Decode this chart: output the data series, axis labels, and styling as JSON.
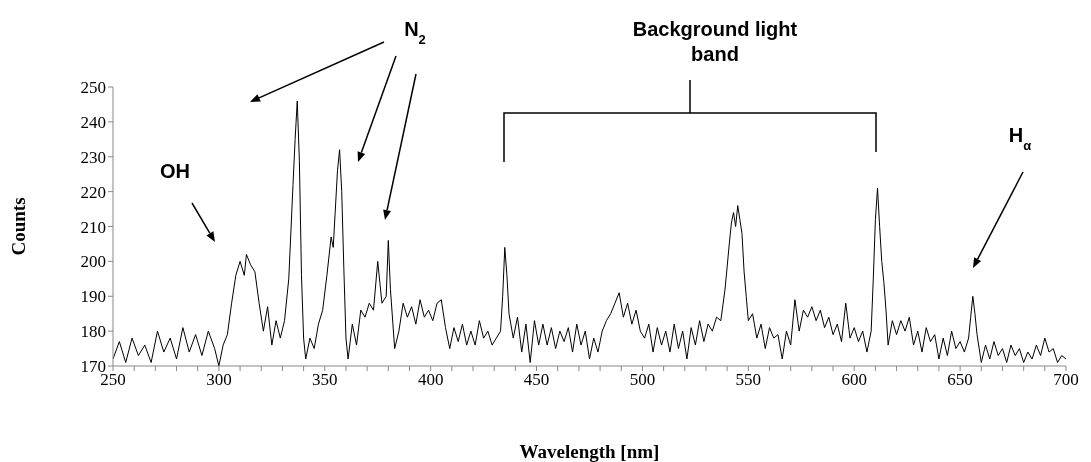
{
  "chart_data": {
    "type": "line",
    "xlabel": "Wavelength [nm]",
    "ylabel": "Counts",
    "xlim": [
      250,
      700
    ],
    "ylim": [
      170,
      250
    ],
    "xticks": [
      250,
      {
        "value": 260,
        "label": null
      },
      {
        "value": 270,
        "label": null
      },
      {
        "value": 280,
        "label": null
      },
      {
        "value": 290,
        "label": null
      },
      300,
      {
        "value": 310,
        "label": null
      },
      {
        "value": 320,
        "label": null
      },
      {
        "value": 330,
        "label": null
      },
      {
        "value": 340,
        "label": null
      },
      350,
      {
        "value": 360,
        "label": null
      },
      {
        "value": 370,
        "label": null
      },
      {
        "value": 380,
        "label": null
      },
      {
        "value": 390,
        "label": null
      },
      400,
      {
        "value": 410,
        "label": null
      },
      {
        "value": 420,
        "label": null
      },
      {
        "value": 430,
        "label": null
      },
      {
        "value": 440,
        "label": null
      },
      450,
      {
        "value": 460,
        "label": null
      },
      {
        "value": 470,
        "label": null
      },
      {
        "value": 480,
        "label": null
      },
      {
        "value": 490,
        "label": null
      },
      500,
      {
        "value": 510,
        "label": null
      },
      {
        "value": 520,
        "label": null
      },
      {
        "value": 530,
        "label": null
      },
      {
        "value": 540,
        "label": null
      },
      550,
      {
        "value": 560,
        "label": null
      },
      {
        "value": 570,
        "label": null
      },
      {
        "value": 580,
        "label": null
      },
      {
        "value": 590,
        "label": null
      },
      600,
      {
        "value": 610,
        "label": null
      },
      {
        "value": 620,
        "label": null
      },
      {
        "value": 630,
        "label": null
      },
      {
        "value": 640,
        "label": null
      },
      650,
      {
        "value": 660,
        "label": null
      },
      {
        "value": 670,
        "label": null
      },
      {
        "value": 680,
        "label": null
      },
      {
        "value": 690,
        "label": null
      },
      700
    ],
    "yticks": [
      170,
      180,
      190,
      200,
      210,
      220,
      230,
      240,
      250
    ],
    "grid": false,
    "legend": false,
    "marker": "none",
    "line_style": "solid",
    "annotations": [
      "OH",
      "N$_{2}$",
      "Background light band",
      "H$_{α}$"
    ],
    "series": [
      {
        "color": "#000000",
        "x": [
          250,
          253,
          256,
          259,
          262,
          265,
          268,
          271,
          274,
          277,
          280,
          283,
          286,
          289,
          292,
          295,
          298,
          300,
          302,
          304,
          306,
          308,
          310,
          312,
          313,
          315,
          317,
          319,
          321,
          323,
          325,
          327,
          329,
          331,
          333,
          335,
          336,
          337,
          338,
          339,
          340,
          341,
          343,
          345,
          347,
          349,
          351,
          353,
          354,
          356,
          357,
          358,
          359,
          360,
          361,
          363,
          365,
          367,
          369,
          371,
          373,
          375,
          376,
          377,
          379,
          380,
          381,
          383,
          385,
          387,
          389,
          391,
          393,
          395,
          397,
          399,
          401,
          403,
          405,
          407,
          409,
          411,
          413,
          415,
          417,
          419,
          421,
          423,
          425,
          427,
          429,
          431,
          433,
          434,
          435,
          436,
          437,
          439,
          441,
          443,
          445,
          447,
          449,
          451,
          453,
          455,
          457,
          459,
          461,
          463,
          465,
          467,
          469,
          471,
          473,
          475,
          477,
          479,
          481,
          483,
          485,
          487,
          489,
          491,
          493,
          495,
          497,
          499,
          501,
          503,
          505,
          507,
          509,
          511,
          513,
          515,
          517,
          519,
          521,
          523,
          525,
          527,
          529,
          531,
          533,
          535,
          537,
          539,
          541,
          542,
          543,
          544,
          545,
          546,
          547,
          548,
          549,
          550,
          552,
          554,
          556,
          558,
          560,
          562,
          564,
          566,
          568,
          570,
          572,
          574,
          576,
          578,
          580,
          582,
          584,
          586,
          588,
          590,
          592,
          594,
          596,
          598,
          600,
          602,
          604,
          606,
          608,
          609,
          610,
          611,
          612,
          613,
          614,
          615,
          616,
          618,
          620,
          622,
          624,
          626,
          628,
          630,
          632,
          634,
          636,
          638,
          640,
          642,
          644,
          646,
          648,
          650,
          652,
          654,
          655,
          656,
          657,
          658,
          660,
          662,
          664,
          666,
          668,
          670,
          672,
          674,
          676,
          678,
          680,
          682,
          684,
          686,
          688,
          690,
          692,
          694,
          696,
          698,
          700
        ],
        "values": [
          172,
          177,
          171,
          178,
          173,
          176,
          171,
          180,
          174,
          178,
          172,
          181,
          174,
          179,
          173,
          180,
          175,
          170,
          176,
          179,
          188,
          196,
          200,
          196,
          202,
          199,
          197,
          188,
          180,
          187,
          176,
          183,
          178,
          183,
          195,
          222,
          235,
          246,
          229,
          196,
          178,
          172,
          178,
          175,
          182,
          186,
          196,
          207,
          204,
          226,
          232,
          220,
          198,
          178,
          172,
          182,
          176,
          186,
          184,
          188,
          186,
          200,
          194,
          188,
          190,
          206,
          192,
          175,
          180,
          188,
          184,
          187,
          182,
          189,
          184,
          186,
          183,
          188,
          189,
          181,
          175,
          181,
          177,
          182,
          176,
          180,
          176,
          183,
          178,
          180,
          176,
          178,
          180,
          190,
          204,
          196,
          185,
          178,
          184,
          174,
          182,
          171,
          183,
          176,
          182,
          176,
          181,
          175,
          180,
          177,
          181,
          174,
          182,
          176,
          180,
          172,
          178,
          174,
          180,
          183,
          185,
          188,
          191,
          184,
          188,
          182,
          186,
          180,
          178,
          182,
          174,
          181,
          176,
          180,
          174,
          182,
          175,
          180,
          172,
          181,
          176,
          183,
          177,
          182,
          180,
          184,
          183,
          192,
          205,
          211,
          214,
          210,
          216,
          212,
          208,
          197,
          190,
          183,
          185,
          178,
          182,
          175,
          181,
          178,
          179,
          172,
          180,
          176,
          189,
          180,
          186,
          184,
          187,
          183,
          186,
          181,
          184,
          179,
          182,
          177,
          188,
          178,
          181,
          177,
          180,
          174,
          180,
          195,
          212,
          221,
          210,
          200,
          194,
          186,
          176,
          183,
          179,
          183,
          180,
          184,
          176,
          180,
          174,
          181,
          177,
          179,
          172,
          178,
          173,
          180,
          175,
          177,
          174,
          178,
          184,
          190,
          185,
          179,
          171,
          176,
          172,
          177,
          173,
          175,
          171,
          176,
          173,
          175,
          171,
          174,
          172,
          176,
          173,
          178,
          174,
          175,
          171,
          173,
          172
        ]
      }
    ]
  }
}
